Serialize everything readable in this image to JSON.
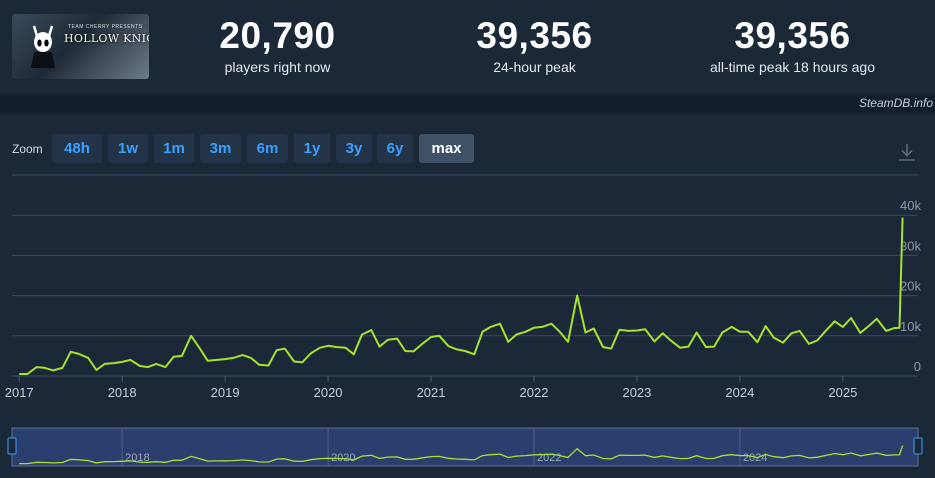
{
  "game": {
    "logo_text": "HOLLOW KNIGHT",
    "logo_subtitle": "TEAM CHERRY PRESENTS"
  },
  "stats": [
    {
      "value": "20,790",
      "label": "players right now"
    },
    {
      "value": "39,356",
      "label": "24-hour peak"
    },
    {
      "value": "39,356",
      "label": "all-time peak 18 hours ago"
    }
  ],
  "credit": "SteamDB.info",
  "zoom": {
    "label": "Zoom",
    "options": [
      "48h",
      "1w",
      "1m",
      "3m",
      "6m",
      "1y",
      "3y",
      "6y",
      "max"
    ],
    "active": "max"
  },
  "colors": {
    "line": "#a4e42b",
    "accent": "#3aa0ff",
    "background": "#1b2838",
    "nav_background": "#2a3f6e"
  },
  "icons": {
    "download": "download-icon"
  },
  "chart_data": {
    "type": "line",
    "title": "",
    "xlabel": "",
    "ylabel": "",
    "x_ticks": [
      "2017",
      "2018",
      "2019",
      "2020",
      "2021",
      "2022",
      "2023",
      "2024",
      "2025"
    ],
    "y_ticks": [
      "0",
      "10k",
      "20k",
      "30k",
      "40k"
    ],
    "xlim": [
      2016.93,
      2025.73
    ],
    "ylim": [
      0,
      40000
    ],
    "grid": true,
    "legend": "none",
    "series": [
      {
        "x": [
          2017.0,
          2017.08,
          2017.17,
          2017.25,
          2017.33,
          2017.42,
          2017.5,
          2017.58,
          2017.67,
          2017.75,
          2017.83,
          2017.92,
          2018.0,
          2018.08,
          2018.17,
          2018.25,
          2018.33,
          2018.42,
          2018.5,
          2018.58,
          2018.67,
          2018.75,
          2018.83,
          2018.92,
          2019.0,
          2019.08,
          2019.17,
          2019.25,
          2019.33,
          2019.42,
          2019.5,
          2019.58,
          2019.67,
          2019.75,
          2019.83,
          2019.92,
          2020.0,
          2020.08,
          2020.17,
          2020.25,
          2020.33,
          2020.42,
          2020.5,
          2020.58,
          2020.67,
          2020.75,
          2020.83,
          2020.92,
          2021.0,
          2021.08,
          2021.17,
          2021.25,
          2021.33,
          2021.42,
          2021.5,
          2021.58,
          2021.67,
          2021.75,
          2021.83,
          2021.92,
          2022.0,
          2022.08,
          2022.17,
          2022.25,
          2022.33,
          2022.42,
          2022.5,
          2022.58,
          2022.67,
          2022.75,
          2022.83,
          2022.92,
          2023.0,
          2023.08,
          2023.17,
          2023.25,
          2023.33,
          2023.42,
          2023.5,
          2023.58,
          2023.67,
          2023.75,
          2023.83,
          2023.92,
          2024.0,
          2024.08,
          2024.17,
          2024.25,
          2024.33,
          2024.42,
          2024.5,
          2024.58,
          2024.67,
          2024.75,
          2024.83,
          2024.92,
          2025.0,
          2025.08,
          2025.17,
          2025.25,
          2025.33,
          2025.42,
          2025.5,
          2025.55,
          2025.58
        ],
        "y": [
          500,
          500,
          2200,
          2000,
          1400,
          2000,
          6000,
          5500,
          4500,
          1500,
          3000,
          3200,
          3500,
          4000,
          2500,
          2200,
          3000,
          2200,
          4800,
          5000,
          10000,
          7000,
          3800,
          4000,
          4200,
          4500,
          5200,
          4500,
          2800,
          2600,
          6400,
          6800,
          3600,
          3400,
          5600,
          7000,
          7500,
          7200,
          7000,
          5400,
          10300,
          11400,
          7300,
          9000,
          9300,
          6200,
          6100,
          8100,
          9700,
          10000,
          7400,
          6600,
          6200,
          5400,
          11000,
          12200,
          13000,
          8500,
          10300,
          11000,
          12000,
          12200,
          13000,
          11000,
          8500,
          20000,
          10800,
          11800,
          7200,
          6800,
          11500,
          11200,
          11300,
          11600,
          8600,
          10600,
          8800,
          7000,
          7300,
          10800,
          7200,
          7300,
          10800,
          12200,
          11000,
          11000,
          8400,
          12400,
          9500,
          8300,
          10600,
          11200,
          8000,
          8800,
          11100,
          13600,
          12200,
          14400,
          10700,
          12400,
          14200,
          11200,
          11900,
          12000,
          39356
        ]
      }
    ]
  }
}
